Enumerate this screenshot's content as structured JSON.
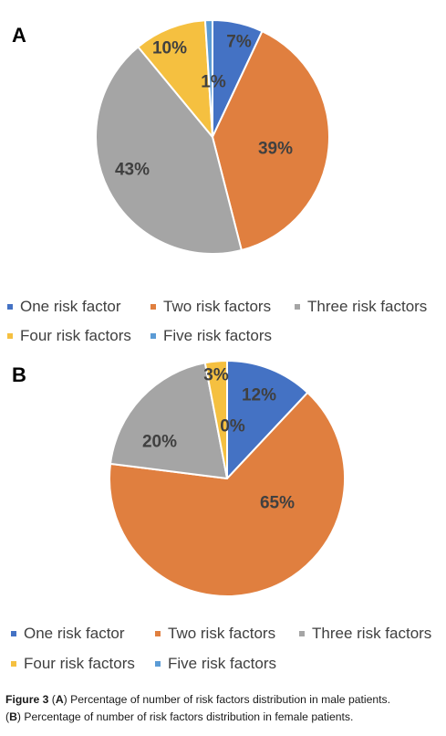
{
  "legend_entries": [
    "One risk factor",
    "Two risk factors",
    "Three risk factors",
    "Four risk factors",
    "Five risk factors"
  ],
  "colors": [
    "#4472C4",
    "#E07F3F",
    "#A5A5A5",
    "#F5C040",
    "#5B9BD5"
  ],
  "chart_data": [
    {
      "type": "pie",
      "panel": "A",
      "labels": [
        "One risk factor",
        "Two risk factors",
        "Three risk factors",
        "Four risk factors",
        "Five risk factors"
      ],
      "values": [
        7,
        39,
        43,
        10,
        1
      ],
      "data_labels": [
        "7%",
        "39%",
        "43%",
        "10%",
        "1%"
      ],
      "legend_position": "bottom"
    },
    {
      "type": "pie",
      "panel": "B",
      "labels": [
        "One risk factor",
        "Two risk factors",
        "Three risk factors",
        "Four risk factors",
        "Five risk factors"
      ],
      "values": [
        12,
        65,
        20,
        3,
        0
      ],
      "data_labels": [
        "12%",
        "65%",
        "20%",
        "3%",
        "0%"
      ],
      "legend_position": "bottom"
    }
  ],
  "caption": {
    "figure_label": "Figure 3",
    "open_paren_a": " (",
    "letter_a": "A",
    "text_a": ") Percentage of number of risk factors distribution in male patients.",
    "open_paren_b": "(",
    "letter_b": "B",
    "text_b": ") Percentage of number of risk factors distribution in female patients."
  }
}
